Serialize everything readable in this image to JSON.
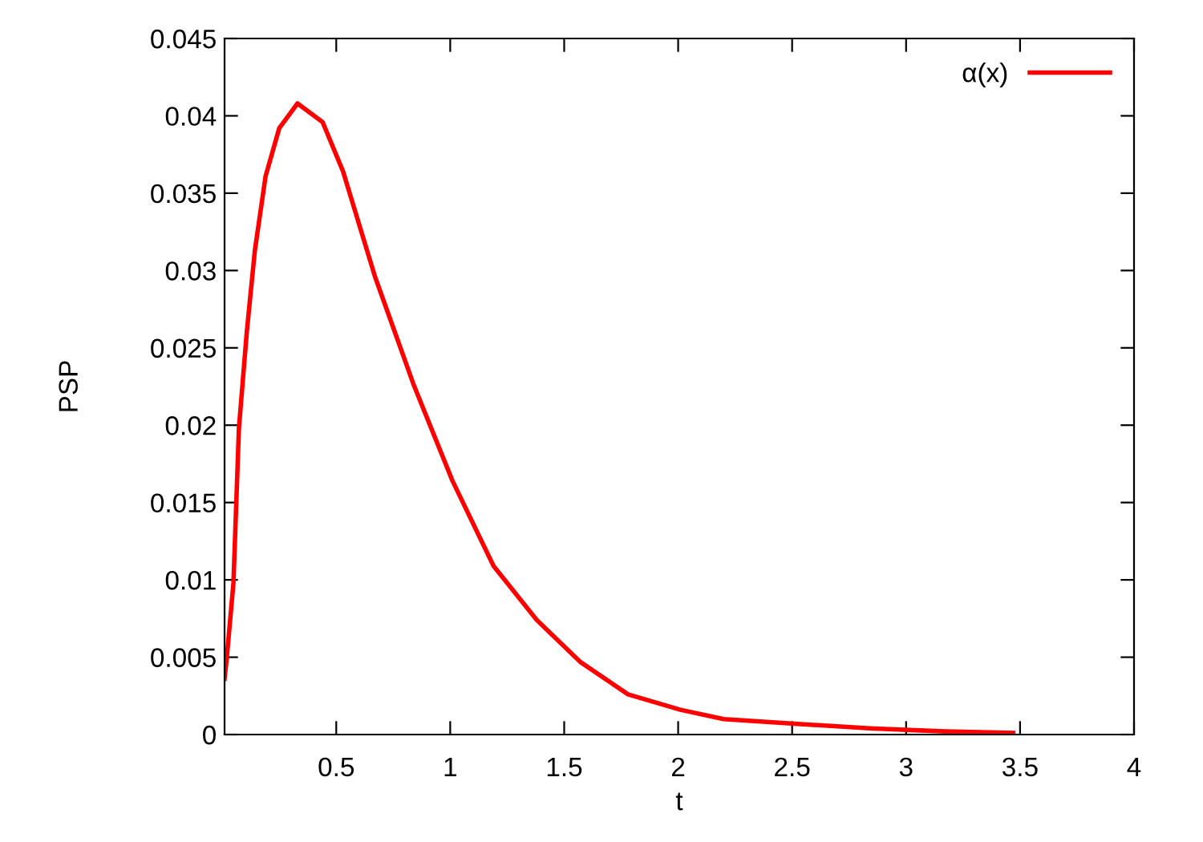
{
  "chart_data": {
    "type": "line",
    "xlabel": "t",
    "ylabel": "PSP",
    "legend": "top right",
    "line_style": "solid",
    "grid": false,
    "xlim": [
      0.01,
      4
    ],
    "xticks": [
      0.5,
      1,
      1.5,
      2,
      2.5,
      3,
      3.5,
      4
    ],
    "ylim": [
      0,
      0.045
    ],
    "yticks": [
      0,
      0.005,
      0.01,
      0.015,
      0.02,
      0.025,
      0.03,
      0.035,
      0.04,
      0.045
    ],
    "series": [
      {
        "name": "α(x)",
        "color": "#ff0000",
        "x": [
          0.01,
          0.02,
          0.049,
          0.073,
          0.108,
          0.143,
          0.19,
          0.25,
          0.33,
          0.44,
          0.53,
          0.67,
          0.84,
          1.01,
          1.19,
          1.38,
          1.57,
          1.78,
          2.01,
          2.2,
          2.51,
          2.84,
          3.17,
          3.47
        ],
        "values": [
          0.0036,
          0.005,
          0.0098,
          0.0198,
          0.0261,
          0.0313,
          0.0361,
          0.0392,
          0.0408,
          0.0396,
          0.0364,
          0.0296,
          0.0226,
          0.0164,
          0.0109,
          0.0074,
          0.0047,
          0.0026,
          0.0016,
          0.001,
          0.0007,
          0.0004,
          0.0002,
          0.0001
        ]
      }
    ]
  }
}
